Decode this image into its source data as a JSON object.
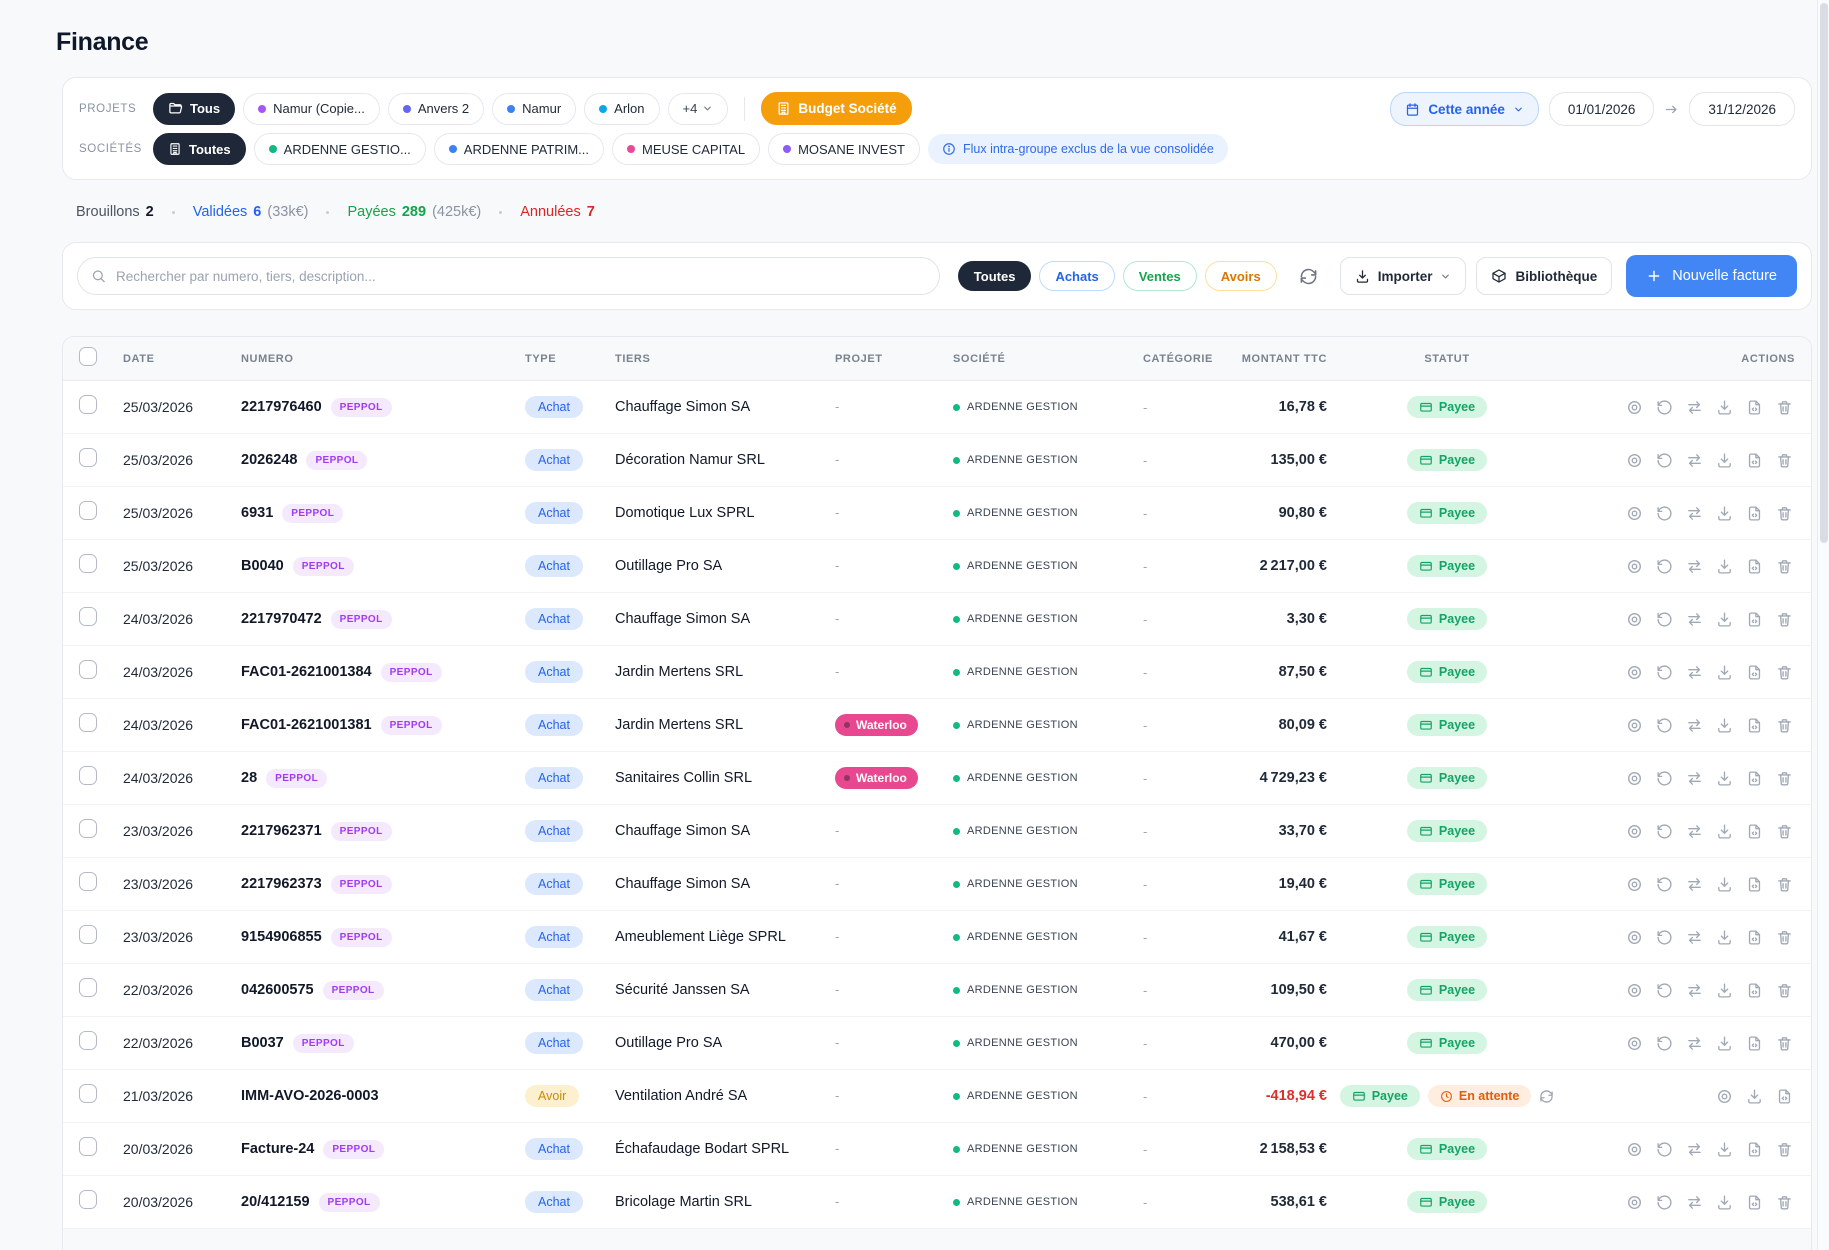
{
  "page": {
    "title": "Finance"
  },
  "filters": {
    "projects": {
      "label": "PROJETS",
      "all_chip": "Tous",
      "chips": [
        {
          "label": "Namur (Copie...",
          "dot": "#a855f7"
        },
        {
          "label": "Anvers 2",
          "dot": "#6366f1"
        },
        {
          "label": "Namur",
          "dot": "#3b82f6"
        },
        {
          "label": "Arlon",
          "dot": "#0ea5e9"
        }
      ],
      "more_chip": "+4",
      "budget_button": "Budget Société"
    },
    "companies": {
      "label": "SOCIÉTÉS",
      "all_chip": "Toutes",
      "chips": [
        {
          "label": "ARDENNE GESTIO...",
          "dot": "#10b981"
        },
        {
          "label": "ARDENNE PATRIM...",
          "dot": "#3b82f6"
        },
        {
          "label": "MEUSE CAPITAL",
          "dot": "#ec4899"
        },
        {
          "label": "MOSANE INVEST",
          "dot": "#8b5cf6"
        }
      ],
      "info_note": "Flux intra-groupe exclus de la vue consolidée"
    },
    "period": {
      "preset": "Cette année",
      "date_from": "01/01/2026",
      "date_to": "31/12/2026"
    }
  },
  "status_summary": [
    {
      "label": "Brouillons",
      "count": "2",
      "extra": "",
      "label_color": "#4b5563",
      "count_color": "#111827"
    },
    {
      "label": "Validées",
      "count": "6",
      "extra": "(33k€)",
      "label_color": "#2563eb",
      "count_color": "#2563eb"
    },
    {
      "label": "Payées",
      "count": "289",
      "extra": "(425k€)",
      "label_color": "#16a34a",
      "count_color": "#16a34a"
    },
    {
      "label": "Annulées",
      "count": "7",
      "extra": "",
      "label_color": "#dc2626",
      "count_color": "#dc2626"
    }
  ],
  "toolbar": {
    "search_placeholder": "Rechercher par numero, tiers, description...",
    "type_filters": [
      {
        "label": "Toutes",
        "style": "dark"
      },
      {
        "label": "Achats",
        "style": "blue"
      },
      {
        "label": "Ventes",
        "style": "green"
      },
      {
        "label": "Avoirs",
        "style": "amber"
      }
    ],
    "import_label": "Importer",
    "library_label": "Bibliothèque",
    "new_invoice_label": "Nouvelle facture"
  },
  "table": {
    "headers": [
      "DATE",
      "NUMERO",
      "TYPE",
      "TIERS",
      "PROJET",
      "SOCIÉTÉ",
      "CATÉGORIE",
      "MONTANT TTC",
      "STATUT",
      "ACTIONS"
    ],
    "peppol_label": "PEPPOL",
    "paid_label": "Payee",
    "pending_label": "En attente",
    "empty_dash": "-",
    "rows": [
      {
        "date": "25/03/2026",
        "numero": "2217976460",
        "peppol": true,
        "type": "Achat",
        "tiers": "Chauffage Simon SA",
        "projet": "",
        "societe": "ARDENNE GESTION",
        "categorie": "-",
        "montant": "16,78 €",
        "negative": false,
        "pending": false,
        "actions": "full"
      },
      {
        "date": "25/03/2026",
        "numero": "2026248",
        "peppol": true,
        "type": "Achat",
        "tiers": "Décoration Namur SRL",
        "projet": "",
        "societe": "ARDENNE GESTION",
        "categorie": "-",
        "montant": "135,00 €",
        "negative": false,
        "pending": false,
        "actions": "full"
      },
      {
        "date": "25/03/2026",
        "numero": "6931",
        "peppol": true,
        "type": "Achat",
        "tiers": "Domotique Lux SPRL",
        "projet": "",
        "societe": "ARDENNE GESTION",
        "categorie": "-",
        "montant": "90,80 €",
        "negative": false,
        "pending": false,
        "actions": "full"
      },
      {
        "date": "25/03/2026",
        "numero": "B0040",
        "peppol": true,
        "type": "Achat",
        "tiers": "Outillage Pro SA",
        "projet": "",
        "societe": "ARDENNE GESTION",
        "categorie": "-",
        "montant": "2 217,00 €",
        "negative": false,
        "pending": false,
        "actions": "full"
      },
      {
        "date": "24/03/2026",
        "numero": "2217970472",
        "peppol": true,
        "type": "Achat",
        "tiers": "Chauffage Simon SA",
        "projet": "",
        "societe": "ARDENNE GESTION",
        "categorie": "-",
        "montant": "3,30 €",
        "negative": false,
        "pending": false,
        "actions": "full"
      },
      {
        "date": "24/03/2026",
        "numero": "FAC01-2621001384",
        "peppol": true,
        "type": "Achat",
        "tiers": "Jardin Mertens SRL",
        "projet": "",
        "societe": "ARDENNE GESTION",
        "categorie": "-",
        "montant": "87,50 €",
        "negative": false,
        "pending": false,
        "actions": "full"
      },
      {
        "date": "24/03/2026",
        "numero": "FAC01-2621001381",
        "peppol": true,
        "type": "Achat",
        "tiers": "Jardin Mertens SRL",
        "projet": "Waterloo",
        "societe": "ARDENNE GESTION",
        "categorie": "-",
        "montant": "80,09 €",
        "negative": false,
        "pending": false,
        "actions": "full"
      },
      {
        "date": "24/03/2026",
        "numero": "28",
        "peppol": true,
        "type": "Achat",
        "tiers": "Sanitaires Collin SRL",
        "projet": "Waterloo",
        "societe": "ARDENNE GESTION",
        "categorie": "-",
        "montant": "4 729,23 €",
        "negative": false,
        "pending": false,
        "actions": "full"
      },
      {
        "date": "23/03/2026",
        "numero": "2217962371",
        "peppol": true,
        "type": "Achat",
        "tiers": "Chauffage Simon SA",
        "projet": "",
        "societe": "ARDENNE GESTION",
        "categorie": "-",
        "montant": "33,70 €",
        "negative": false,
        "pending": false,
        "actions": "full"
      },
      {
        "date": "23/03/2026",
        "numero": "2217962373",
        "peppol": true,
        "type": "Achat",
        "tiers": "Chauffage Simon SA",
        "projet": "",
        "societe": "ARDENNE GESTION",
        "categorie": "-",
        "montant": "19,40 €",
        "negative": false,
        "pending": false,
        "actions": "full"
      },
      {
        "date": "23/03/2026",
        "numero": "9154906855",
        "peppol": true,
        "type": "Achat",
        "tiers": "Ameublement Liège SPRL",
        "projet": "",
        "societe": "ARDENNE GESTION",
        "categorie": "-",
        "montant": "41,67 €",
        "negative": false,
        "pending": false,
        "actions": "full"
      },
      {
        "date": "22/03/2026",
        "numero": "042600575",
        "peppol": true,
        "type": "Achat",
        "tiers": "Sécurité Janssen SA",
        "projet": "",
        "societe": "ARDENNE GESTION",
        "categorie": "-",
        "montant": "109,50 €",
        "negative": false,
        "pending": false,
        "actions": "full"
      },
      {
        "date": "22/03/2026",
        "numero": "B0037",
        "peppol": true,
        "type": "Achat",
        "tiers": "Outillage Pro SA",
        "projet": "",
        "societe": "ARDENNE GESTION",
        "categorie": "-",
        "montant": "470,00 €",
        "negative": false,
        "pending": false,
        "actions": "full"
      },
      {
        "date": "21/03/2026",
        "numero": "IMM-AVO-2026-0003",
        "peppol": false,
        "type": "Avoir",
        "tiers": "Ventilation André SA",
        "projet": "",
        "societe": "ARDENNE GESTION",
        "categorie": "-",
        "montant": "-418,94 €",
        "negative": true,
        "pending": true,
        "actions": "limited"
      },
      {
        "date": "20/03/2026",
        "numero": "Facture-24",
        "peppol": true,
        "type": "Achat",
        "tiers": "Échafaudage Bodart SPRL",
        "projet": "",
        "societe": "ARDENNE GESTION",
        "categorie": "-",
        "montant": "2 158,53 €",
        "negative": false,
        "pending": false,
        "actions": "full"
      },
      {
        "date": "20/03/2026",
        "numero": "20/412159",
        "peppol": true,
        "type": "Achat",
        "tiers": "Bricolage Martin SRL",
        "projet": "",
        "societe": "ARDENNE GESTION",
        "categorie": "-",
        "montant": "538,61 €",
        "negative": false,
        "pending": false,
        "actions": "full"
      }
    ]
  },
  "colors": {
    "accent_blue": "#4285f4",
    "budget_orange": "#f59e0b",
    "paid_green": "#15a366",
    "pending_orange": "#e25c0c",
    "waterloo_pink": "#e8488f",
    "negative_red": "#e02d2d",
    "societe_dot_green": "#12b981"
  }
}
